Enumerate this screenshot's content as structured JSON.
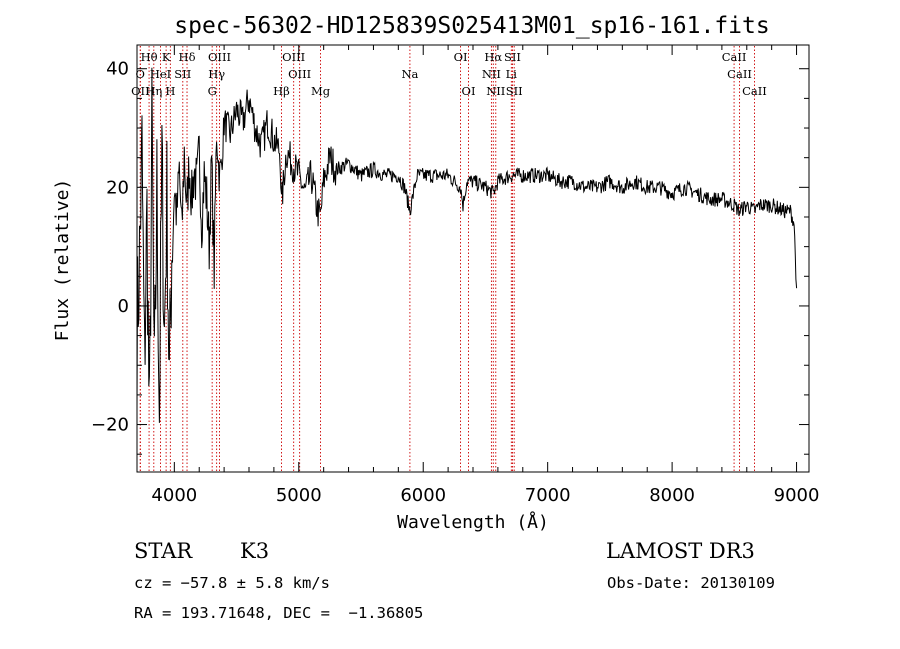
{
  "chart_data": {
    "type": "line",
    "title": "spec-56302-HD125839S025413M01_sp16-161.fits",
    "xlabel": "Wavelength (Å)",
    "ylabel": "Flux (relative)",
    "xlim": [
      3700,
      9100
    ],
    "ylim": [
      -28,
      44
    ],
    "x_ticks": [
      4000,
      5000,
      6000,
      7000,
      8000,
      9000
    ],
    "x_tick_labels": [
      "4000",
      "5000",
      "6000",
      "7000",
      "8000",
      "9000"
    ],
    "y_ticks": [
      -20,
      0,
      20,
      40
    ],
    "y_tick_labels": [
      "−20",
      "0",
      "20",
      "40"
    ],
    "grid": false,
    "series": [
      {
        "x": [
          3700,
          3720,
          3740,
          3760,
          3780,
          3800,
          3820,
          3840,
          3860,
          3880,
          3900,
          3920,
          3940,
          3960,
          3980,
          4000,
          4020,
          4040,
          4060,
          4080,
          4100,
          4120,
          4140,
          4160,
          4180,
          4200,
          4220,
          4240,
          4260,
          4280,
          4300,
          4320,
          4340,
          4360,
          4380,
          4400,
          4450,
          4500,
          4550,
          4600,
          4650,
          4700,
          4750,
          4800,
          4850,
          4861,
          4900,
          4950,
          5000,
          5050,
          5100,
          5150,
          5175,
          5200,
          5250,
          5300,
          5400,
          5500,
          5600,
          5700,
          5800,
          5850,
          5893,
          5950,
          6000,
          6100,
          6200,
          6300,
          6320,
          6350,
          6400,
          6500,
          6563,
          6600,
          6700,
          6800,
          6900,
          7000,
          7100,
          7200,
          7300,
          7400,
          7500,
          7600,
          7700,
          7800,
          7900,
          8000,
          8100,
          8200,
          8300,
          8400,
          8500,
          8542,
          8600,
          8662,
          8700,
          8800,
          8900,
          8950,
          8980,
          9000
        ],
        "y": [
          -5,
          8,
          26,
          -10,
          15,
          -22,
          30,
          -15,
          20,
          -18,
          25,
          -5,
          18,
          -13,
          10,
          20,
          15,
          23,
          12,
          26,
          16,
          24,
          18,
          23,
          20,
          26,
          14,
          22,
          18,
          10,
          24,
          6,
          30,
          22,
          24,
          31,
          29,
          33,
          31,
          35,
          30,
          27,
          31,
          28,
          26,
          17,
          26,
          24,
          22,
          19,
          22,
          16,
          15,
          21,
          25,
          23,
          24,
          22,
          23,
          22,
          22,
          20,
          16,
          22,
          22,
          22,
          22,
          20,
          17,
          21,
          21,
          20,
          19,
          21,
          22,
          22,
          22,
          22,
          21,
          21,
          20,
          20,
          21,
          20,
          21,
          20,
          20,
          19,
          20,
          19,
          18,
          18,
          17,
          16,
          17,
          16,
          17,
          17,
          16,
          16,
          14,
          3
        ]
      }
    ],
    "spectral_lines": [
      {
        "label": "Hθ",
        "x": 3797,
        "row": 0
      },
      {
        "label": "K",
        "x": 3934,
        "row": 0
      },
      {
        "label": "Hδ",
        "x": 4102,
        "row": 0
      },
      {
        "label": "OIII",
        "x": 4363,
        "row": 0
      },
      {
        "label": "OIII",
        "x": 4959,
        "row": 0
      },
      {
        "label": "Na",
        "x": 5893,
        "row": 1
      },
      {
        "label": "OI",
        "x": 6300,
        "row": 0
      },
      {
        "label": "Hα",
        "x": 6563,
        "row": 0
      },
      {
        "label": "SII",
        "x": 6717,
        "row": 0
      },
      {
        "label": "CaII",
        "x": 8498,
        "row": 0
      },
      {
        "label": "HeI",
        "x": 3889,
        "row": 1
      },
      {
        "label": "SII",
        "x": 4068,
        "row": 1
      },
      {
        "label": "Hγ",
        "x": 4340,
        "row": 1
      },
      {
        "label": "OIII",
        "x": 5007,
        "row": 1
      },
      {
        "label": "NII",
        "x": 6548,
        "row": 1
      },
      {
        "label": "Li",
        "x": 6708,
        "row": 1
      },
      {
        "label": "CaII",
        "x": 8542,
        "row": 1
      },
      {
        "label": "OII",
        "x": 3727,
        "row": 2
      },
      {
        "label": "Hη",
        "x": 3835,
        "row": 2
      },
      {
        "label": "H",
        "x": 3968,
        "row": 2
      },
      {
        "label": "G",
        "x": 4304,
        "row": 2
      },
      {
        "label": "Hβ",
        "x": 4861,
        "row": 2
      },
      {
        "label": "Mg",
        "x": 5175,
        "row": 2
      },
      {
        "label": "OI",
        "x": 6364,
        "row": 2
      },
      {
        "label": "NII",
        "x": 6583,
        "row": 2
      },
      {
        "label": "SII",
        "x": 6731,
        "row": 2
      },
      {
        "label": "CaII",
        "x": 8662,
        "row": 2
      },
      {
        "label": "O",
        "x": 3726,
        "row": 1
      }
    ]
  },
  "info": {
    "object_class": "STAR",
    "subclass": "K3",
    "survey": "LAMOST DR3",
    "cz": "cz = −57.8 ± 5.8 km/s",
    "obs_date": "Obs-Date: 20130109",
    "coords": "RA = 193.71648, DEC =  −1.36805"
  },
  "colors": {
    "spectrum": "#000000",
    "line_markers": "#cc0000",
    "frame": "#000000"
  }
}
